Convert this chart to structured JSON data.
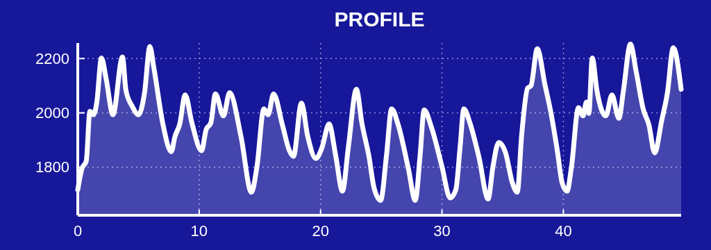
{
  "chart_data": {
    "type": "area",
    "title": "PROFILE",
    "xlim": [
      0,
      49.7
    ],
    "xticks": [
      0,
      10,
      20,
      30,
      40
    ],
    "ylim": [
      1623,
      2257
    ],
    "yticks": [
      1800,
      2000,
      2200
    ],
    "grid": true,
    "series": [
      {
        "color": "#ffffff",
        "x": [
          0,
          0.33,
          0.7,
          1.0,
          1.3,
          1.57,
          1.95,
          2.34,
          2.9,
          3.68,
          3.97,
          4.5,
          5.0,
          5.5,
          5.94,
          6.26,
          7.03,
          7.7,
          8.0,
          8.4,
          8.85,
          9.4,
          10.2,
          10.57,
          10.96,
          11.34,
          12.0,
          12.5,
          13.45,
          14.3,
          14.76,
          15.33,
          15.68,
          16.13,
          16.86,
          17.43,
          17.77,
          18.42,
          18.95,
          19.62,
          20.1,
          20.7,
          21.24,
          21.8,
          22.3,
          22.95,
          23.4,
          24.0,
          24.4,
          24.95,
          25.43,
          25.85,
          26.4,
          27.24,
          27.8,
          28.2,
          28.53,
          29.14,
          30.0,
          30.67,
          31.14,
          31.5,
          31.8,
          32.3,
          33.05,
          33.8,
          34.2,
          34.67,
          35.24,
          35.8,
          36.2,
          36.57,
          37.05,
          37.33,
          37.85,
          38.48,
          38.95,
          39.5,
          39.9,
          40.3,
          40.67,
          41.24,
          41.62,
          41.9,
          42.1,
          42.38,
          42.76,
          43.5,
          44.0,
          44.57,
          44.95,
          45.52,
          46.0,
          46.57,
          47.05,
          47.52,
          48.1,
          48.57,
          49.05,
          49.7
        ],
        "values": [
          1717,
          1793,
          1823,
          2006,
          1993,
          2040,
          2202,
          2125,
          1993,
          2206,
          2083,
          2023,
          1993,
          2074,
          2244,
          2168,
          1955,
          1857,
          1912,
          1959,
          2066,
          1963,
          1861,
          1938,
          1963,
          2070,
          1989,
          2074,
          1912,
          1708,
          1802,
          2015,
          1993,
          2070,
          1955,
          1861,
          1840,
          2036,
          1912,
          1832,
          1870,
          1959,
          1844,
          1712,
          1878,
          2087,
          1963,
          1836,
          1725,
          1678,
          1844,
          2015,
          1955,
          1793,
          1678,
          1844,
          2011,
          1946,
          1802,
          1687,
          1717,
          1878,
          2015,
          1963,
          1836,
          1683,
          1802,
          1891,
          1853,
          1742,
          1708,
          1921,
          2091,
          2100,
          2236,
          2104,
          2006,
          1861,
          1742,
          1712,
          1802,
          2019,
          1989,
          2040,
          1998,
          2202,
          2083,
          1989,
          2066,
          1980,
          2083,
          2253,
          2151,
          2015,
          1955,
          1853,
          1972,
          2074,
          2240,
          2087
        ]
      }
    ]
  }
}
